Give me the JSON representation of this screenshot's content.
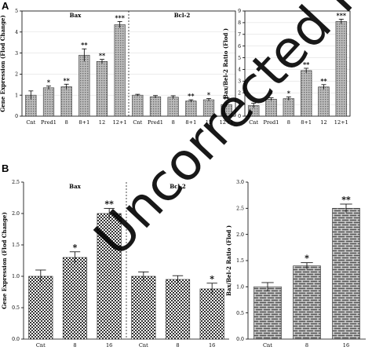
{
  "panels": {
    "a": {
      "letter": "A"
    },
    "b": {
      "letter": "B"
    }
  },
  "watermark": "Uncorrected Proof",
  "chart_data": [
    {
      "id": "A-gene",
      "type": "bar",
      "ylabel": "Gene Expression (Flod Change)",
      "ylim": [
        0,
        5
      ],
      "yticks": [
        "0",
        "1",
        "2",
        "3",
        "4",
        "5"
      ],
      "grid": true,
      "groups": [
        {
          "name": "Bax",
          "categories": [
            "Cnt",
            "Pred1",
            "8",
            "8+1",
            "12",
            "12+1"
          ],
          "values": [
            1.0,
            1.35,
            1.4,
            2.9,
            2.6,
            4.35
          ],
          "errors": [
            0.2,
            0.08,
            0.12,
            0.3,
            0.1,
            0.15
          ],
          "significance": [
            "",
            "*",
            "**",
            "**",
            "**",
            "***"
          ]
        },
        {
          "name": "Bcl-2",
          "categories": [
            "Cnt",
            "Pred1",
            "8",
            "8+1",
            "12",
            "12+1"
          ],
          "values": [
            1.0,
            0.92,
            0.9,
            0.72,
            0.78,
            0.55
          ],
          "errors": [
            0.04,
            0.06,
            0.07,
            0.06,
            0.06,
            0.08
          ],
          "significance": [
            "",
            "",
            "",
            "**",
            "*",
            "**"
          ]
        }
      ]
    },
    {
      "id": "A-ratio",
      "type": "bar",
      "ylabel": "Bax/Bel-2 Ratio (Flod )",
      "ylim": [
        0,
        9
      ],
      "yticks": [
        "0",
        "1",
        "2",
        "3",
        "4",
        "5",
        "6",
        "7",
        "8",
        "9"
      ],
      "grid": true,
      "categories": [
        "Cnt",
        "Pred1",
        "8",
        "8+1",
        "12",
        "12+1"
      ],
      "values": [
        0.9,
        1.45,
        1.5,
        3.9,
        2.5,
        8.1
      ],
      "errors": [
        0.2,
        0.12,
        0.15,
        0.2,
        0.2,
        0.2
      ],
      "significance": [
        "",
        "*",
        "*",
        "**",
        "**",
        "***"
      ]
    },
    {
      "id": "B-gene",
      "type": "bar",
      "ylabel": "Gene Expression (Flod Change)",
      "ylim": [
        0,
        2.5
      ],
      "yticks": [
        "0.0",
        "0.5",
        "1.0",
        "1.5",
        "2.0",
        "2.5"
      ],
      "grid": false,
      "groups": [
        {
          "name": "Bax",
          "categories": [
            "Cnt",
            "8",
            "16"
          ],
          "values": [
            1.0,
            1.3,
            2.0
          ],
          "errors": [
            0.1,
            0.09,
            0.08
          ],
          "significance": [
            "",
            "*",
            "**"
          ]
        },
        {
          "name": "Bcl-2",
          "categories": [
            "Cnt",
            "8",
            "16"
          ],
          "values": [
            1.0,
            0.95,
            0.8
          ],
          "errors": [
            0.07,
            0.06,
            0.09
          ],
          "significance": [
            "",
            "",
            "*"
          ]
        }
      ]
    },
    {
      "id": "B-ratio",
      "type": "bar",
      "ylabel": "Bax/Bel-2 Ratio (Flod )",
      "ylim": [
        0,
        3.0
      ],
      "yticks": [
        "0.0",
        "0.5",
        "1.0",
        "1.5",
        "2.0",
        "2.5",
        "3.0"
      ],
      "grid": false,
      "categories": [
        "Cnt",
        "8",
        "16"
      ],
      "values": [
        1.0,
        1.4,
        2.5
      ],
      "errors": [
        0.08,
        0.06,
        0.08
      ],
      "significance": [
        "",
        "*",
        "**"
      ]
    }
  ]
}
